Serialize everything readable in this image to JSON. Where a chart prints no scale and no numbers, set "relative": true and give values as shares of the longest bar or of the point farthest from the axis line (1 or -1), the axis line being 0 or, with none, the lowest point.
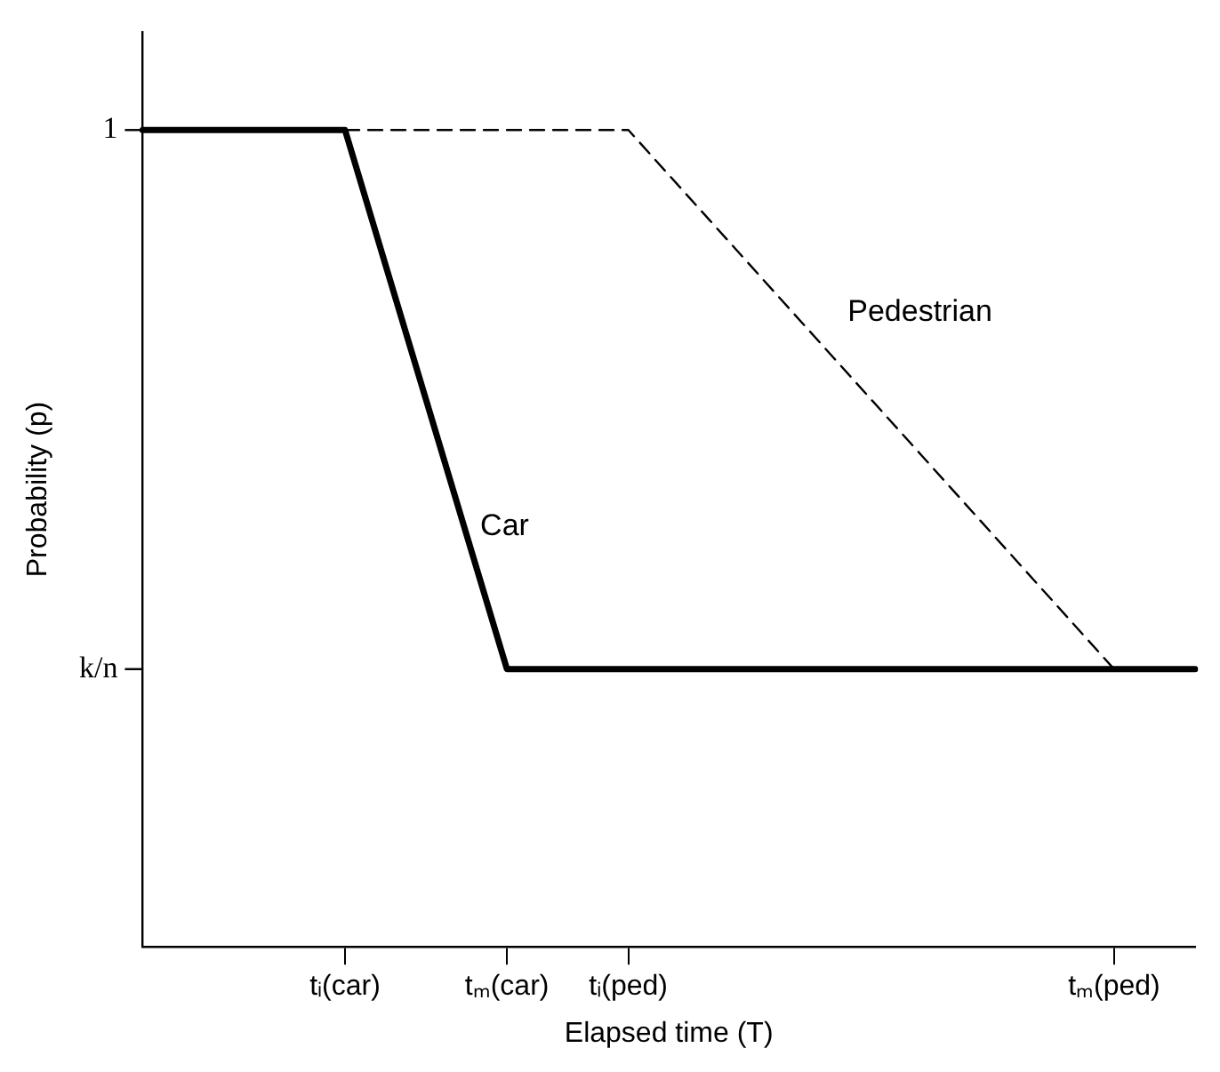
{
  "chart_data": {
    "type": "line",
    "xlabel": "Elapsed time (T)",
    "ylabel": "Probability (p)",
    "relative": true,
    "categories": [
      null,
      null,
      null,
      null,
      null,
      "tᵢ(car)",
      null,
      null,
      null,
      "tₘ(car)",
      null,
      null,
      "tᵢ(ped)",
      null,
      null,
      null,
      null,
      null,
      null,
      null,
      null,
      null,
      null,
      null,
      "tₘ(ped)",
      null,
      null
    ],
    "annotations": [
      "1",
      "k/n"
    ],
    "grid": false,
    "legend": false,
    "marker": "none",
    "series": [
      {
        "name": "Car",
        "color": "#000000",
        "line_style": "solid",
        "values": [
          1,
          1,
          1,
          1,
          1,
          1,
          0.835,
          0.67,
          0.505,
          0.34,
          0.34,
          0.34,
          0.34,
          0.34,
          0.34,
          0.34,
          0.34,
          0.34,
          0.34,
          0.34,
          0.34,
          0.34,
          0.34,
          0.34,
          0.34,
          0.34,
          0.34
        ]
      },
      {
        "name": "Pedestrian",
        "color": "#000000",
        "line_style": "dashed",
        "values": [
          null,
          null,
          null,
          null,
          null,
          1,
          1,
          1,
          1,
          1,
          1,
          1,
          1,
          0.945,
          0.89,
          0.835,
          0.78,
          0.725,
          0.67,
          0.615,
          0.56,
          0.505,
          0.45,
          0.395,
          0.34,
          null,
          null
        ]
      }
    ]
  }
}
